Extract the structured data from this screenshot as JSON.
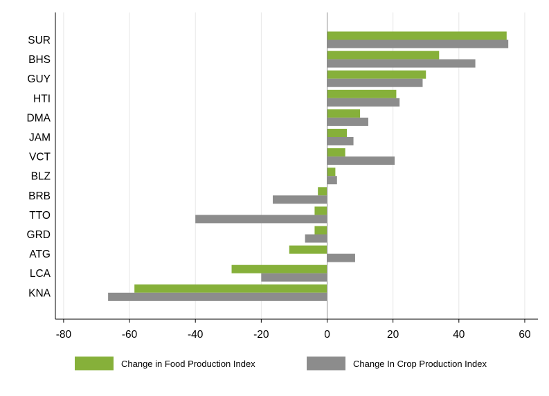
{
  "chart_data": {
    "type": "bar",
    "orientation": "horizontal",
    "categories": [
      "SUR",
      "BHS",
      "GUY",
      "HTI",
      "DMA",
      "JAM",
      "VCT",
      "BLZ",
      "BRB",
      "TTO",
      "GRD",
      "ATG",
      "LCA",
      "KNA"
    ],
    "series": [
      {
        "name": "Change in Food Production Index",
        "color": "#86b03a",
        "values": [
          54.5,
          34.0,
          30.0,
          21.0,
          10.0,
          6.0,
          5.5,
          2.5,
          -2.8,
          -3.8,
          -3.8,
          -11.5,
          -29.0,
          -58.5
        ]
      },
      {
        "name": "Change In Crop Production Index",
        "color": "#8c8c8c",
        "values": [
          55.0,
          45.0,
          29.0,
          22.0,
          12.5,
          8.0,
          20.5,
          3.0,
          -16.5,
          -40.0,
          -6.7,
          8.5,
          -20.0,
          -66.5
        ]
      }
    ],
    "xlim": [
      -82.5,
      64
    ],
    "xticks": [
      -80,
      -60,
      -40,
      -20,
      0,
      20,
      40,
      60
    ],
    "grid": true,
    "legend_position": "bottom",
    "title": "",
    "xlabel": "",
    "ylabel": ""
  }
}
